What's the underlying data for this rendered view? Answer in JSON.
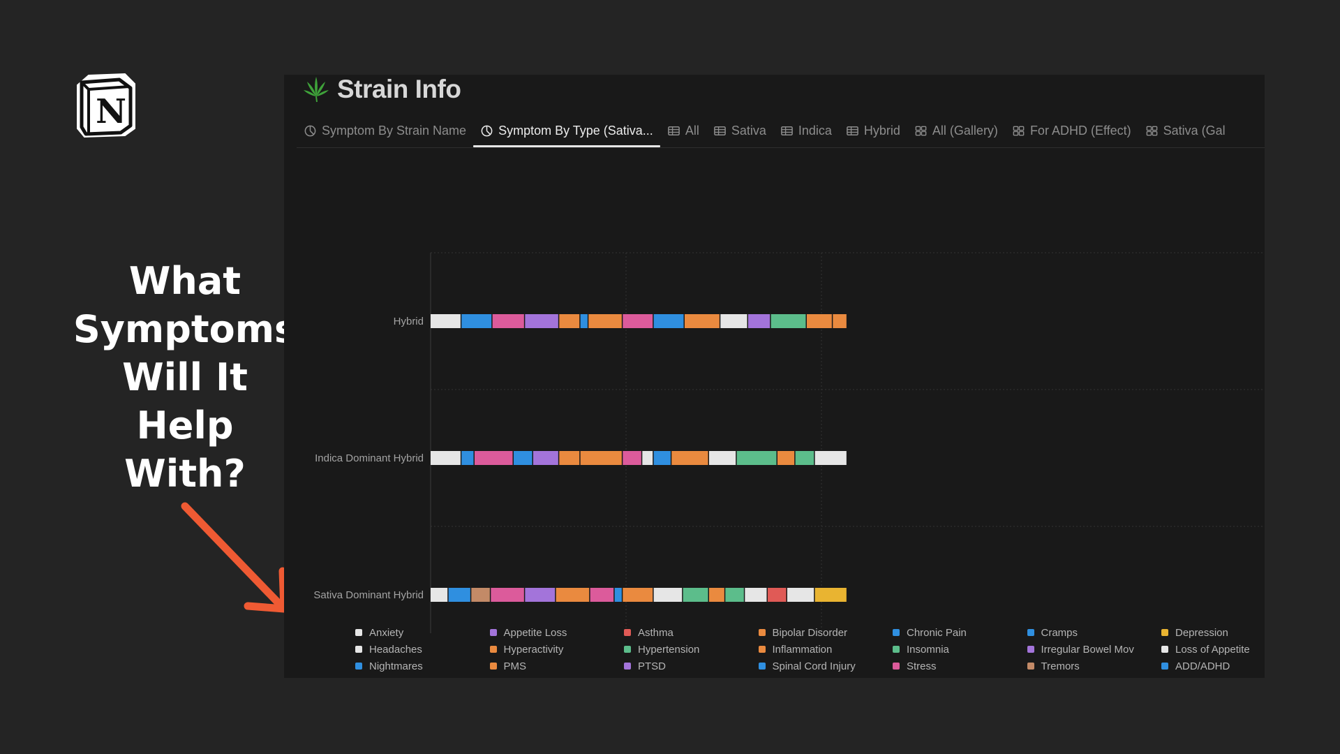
{
  "headline": [
    "What",
    "Symptoms",
    "Will It",
    "Help",
    "With?"
  ],
  "logo": {
    "icon": "notion-logo",
    "letter": "N"
  },
  "page": {
    "icon": "cannabis-leaf-icon",
    "title": "Strain Info"
  },
  "tabs": [
    {
      "label": "Symptom By Strain Name",
      "icon": "chart-icon",
      "active": false
    },
    {
      "label": "Symptom By Type (Sativa...",
      "icon": "chart-icon",
      "active": true
    },
    {
      "label": "All",
      "icon": "table-icon",
      "active": false
    },
    {
      "label": "Sativa",
      "icon": "table-icon",
      "active": false
    },
    {
      "label": "Indica",
      "icon": "table-icon",
      "active": false
    },
    {
      "label": "Hybrid",
      "icon": "table-icon",
      "active": false
    },
    {
      "label": "All (Gallery)",
      "icon": "gallery-icon",
      "active": false
    },
    {
      "label": "For ADHD (Effect)",
      "icon": "gallery-icon",
      "active": false
    },
    {
      "label": "Sativa (Gal",
      "icon": "gallery-icon",
      "active": false
    }
  ],
  "colors": {
    "white": "#e6e6e6",
    "blue": "#2f8fe0",
    "purple": "#a374da",
    "red": "#e05a56",
    "orange": "#ea8a3f",
    "green": "#5cbd8b",
    "pink": "#dc5b9b",
    "brown": "#c38a67",
    "yellow": "#e9b431"
  },
  "chart_data": {
    "type": "bar",
    "orientation": "horizontal",
    "stacked": true,
    "categories": [
      "Hybrid",
      "Indica Dominant Hybrid",
      "Sativa Dominant Hybrid"
    ],
    "xlim": [
      0,
      256
    ],
    "xticks": [
      0,
      120,
      240
    ],
    "grid": true,
    "legend_position": "bottom",
    "segments": [
      [
        {
          "value": 19,
          "color": "white"
        },
        {
          "value": 19,
          "color": "blue"
        },
        {
          "value": 20,
          "color": "pink"
        },
        {
          "value": 21,
          "color": "purple"
        },
        {
          "value": 13,
          "color": "orange"
        },
        {
          "value": 5,
          "color": "blue"
        },
        {
          "value": 21,
          "color": "orange"
        },
        {
          "value": 19,
          "color": "pink"
        },
        {
          "value": 19,
          "color": "blue"
        },
        {
          "value": 22,
          "color": "orange"
        },
        {
          "value": 17,
          "color": "white"
        },
        {
          "value": 14,
          "color": "purple"
        },
        {
          "value": 22,
          "color": "green"
        },
        {
          "value": 16,
          "color": "orange"
        },
        {
          "value": 9,
          "color": "orange"
        }
      ],
      [
        {
          "value": 19,
          "color": "white"
        },
        {
          "value": 8,
          "color": "blue"
        },
        {
          "value": 24,
          "color": "pink"
        },
        {
          "value": 12,
          "color": "blue"
        },
        {
          "value": 16,
          "color": "purple"
        },
        {
          "value": 13,
          "color": "orange"
        },
        {
          "value": 26,
          "color": "orange"
        },
        {
          "value": 12,
          "color": "pink"
        },
        {
          "value": 7,
          "color": "white"
        },
        {
          "value": 11,
          "color": "blue"
        },
        {
          "value": 23,
          "color": "orange"
        },
        {
          "value": 17,
          "color": "white"
        },
        {
          "value": 25,
          "color": "green"
        },
        {
          "value": 11,
          "color": "orange"
        },
        {
          "value": 12,
          "color": "green"
        },
        {
          "value": 20,
          "color": "white"
        }
      ],
      [
        {
          "value": 11,
          "color": "white"
        },
        {
          "value": 14,
          "color": "blue"
        },
        {
          "value": 12,
          "color": "brown"
        },
        {
          "value": 21,
          "color": "pink"
        },
        {
          "value": 19,
          "color": "purple"
        },
        {
          "value": 21,
          "color": "orange"
        },
        {
          "value": 15,
          "color": "pink"
        },
        {
          "value": 5,
          "color": "blue"
        },
        {
          "value": 19,
          "color": "orange"
        },
        {
          "value": 18,
          "color": "white"
        },
        {
          "value": 16,
          "color": "green"
        },
        {
          "value": 10,
          "color": "orange"
        },
        {
          "value": 12,
          "color": "green"
        },
        {
          "value": 14,
          "color": "white"
        },
        {
          "value": 12,
          "color": "red"
        },
        {
          "value": 17,
          "color": "white"
        },
        {
          "value": 20,
          "color": "yellow"
        }
      ]
    ],
    "legend": [
      {
        "label": "Anxiety",
        "color": "white"
      },
      {
        "label": "Appetite Loss",
        "color": "purple"
      },
      {
        "label": "Asthma",
        "color": "red"
      },
      {
        "label": "Bipolar Disorder",
        "color": "orange"
      },
      {
        "label": "Chronic Pain",
        "color": "blue"
      },
      {
        "label": "Cramps",
        "color": "blue"
      },
      {
        "label": "Depression",
        "color": "yellow"
      },
      {
        "label": "Headaches",
        "color": "white"
      },
      {
        "label": "Hyperactivity",
        "color": "orange"
      },
      {
        "label": "Hypertension",
        "color": "green"
      },
      {
        "label": "Inflammation",
        "color": "orange"
      },
      {
        "label": "Insomnia",
        "color": "green"
      },
      {
        "label": "Irregular Bowel Mov",
        "color": "purple"
      },
      {
        "label": "Loss of Appetite",
        "color": "white"
      },
      {
        "label": "Nightmares",
        "color": "blue"
      },
      {
        "label": "PMS",
        "color": "orange"
      },
      {
        "label": "PTSD",
        "color": "purple"
      },
      {
        "label": "Spinal Cord Injury",
        "color": "blue"
      },
      {
        "label": "Stress",
        "color": "pink"
      },
      {
        "label": "Tremors",
        "color": "brown"
      },
      {
        "label": "ADD/ADHD",
        "color": "blue"
      }
    ]
  }
}
